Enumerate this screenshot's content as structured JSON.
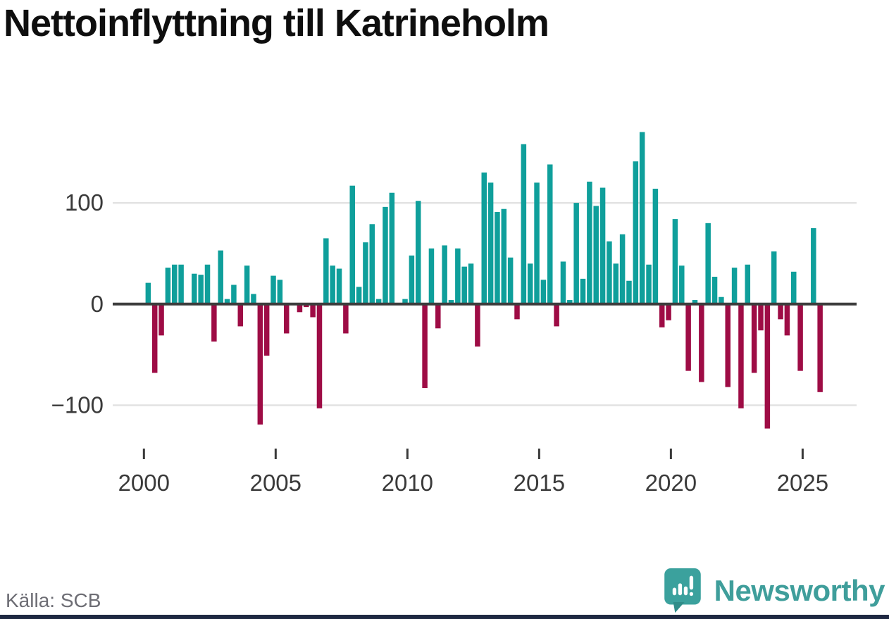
{
  "title": "Nettoinflyttning till Katrineholm",
  "source": "Källa: SCB",
  "branding": {
    "name": "Newsworthy"
  },
  "colors": {
    "positive_bar": "#0f9f9b",
    "negative_bar": "#9e0c45",
    "zero_axis": "#3d3d3d",
    "gridline": "#e2e2e2",
    "tick_label": "#3a3a3a",
    "title_text": "#0e0e0e",
    "source_text": "#6d6d74",
    "brand_teal": "#3f9e9b",
    "bottom_bar": "#1f2942"
  },
  "chart_data": {
    "type": "bar",
    "title": "Nettoinflyttning till Katrineholm",
    "xlabel": "",
    "ylabel": "",
    "x_frequency": "quarterly",
    "x_start": "2000Q1",
    "x_end": "2025Q3",
    "values": [
      21,
      -68,
      -31,
      36,
      39,
      39,
      0,
      30,
      29,
      39,
      -37,
      53,
      5,
      19,
      -22,
      38,
      10,
      -119,
      -51,
      28,
      24,
      -29,
      0,
      -8,
      -3,
      -13,
      -103,
      65,
      38,
      35,
      -29,
      117,
      17,
      61,
      79,
      5,
      96,
      110,
      0,
      5,
      48,
      102,
      -83,
      55,
      -24,
      58,
      4,
      55,
      37,
      40,
      -42,
      130,
      120,
      91,
      94,
      46,
      -15,
      158,
      40,
      120,
      24,
      138,
      -22,
      42,
      4,
      100,
      25,
      121,
      97,
      115,
      62,
      40,
      69,
      23,
      141,
      170,
      39,
      114,
      -23,
      -16,
      84,
      38,
      -66,
      4,
      -77,
      80,
      27,
      7,
      -82,
      36,
      -103,
      39,
      -68,
      -26,
      -123,
      52,
      -15,
      -31,
      32,
      -66,
      0,
      75,
      -87
    ],
    "x_ticks": [
      2000,
      2005,
      2010,
      2015,
      2020,
      2025
    ],
    "y_ticks": [
      {
        "value": 100,
        "label": "100"
      },
      {
        "value": 0,
        "label": "0"
      },
      {
        "value": -100,
        "label": "−100"
      }
    ],
    "y_gridlines": [
      100,
      -100
    ],
    "ylim": [
      -135,
      180
    ],
    "grid": "horizontal",
    "legend": "none",
    "bar_color_rule": "teal for positive values, dark red for negative values"
  }
}
